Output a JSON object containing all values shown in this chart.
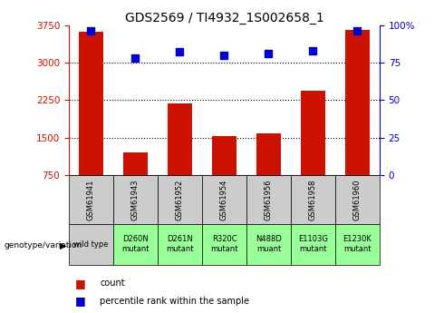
{
  "title": "GDS2569 / TI4932_1S002658_1",
  "samples": [
    "GSM61941",
    "GSM61943",
    "GSM61952",
    "GSM61954",
    "GSM61956",
    "GSM61958",
    "GSM61960"
  ],
  "genotype_labels": [
    "wild type",
    "D260N\nmutant",
    "D261N\nmutant",
    "R320C\nmutant",
    "N488D\nmuant",
    "E1103G\nmutant",
    "E1230K\nmutant"
  ],
  "genotype_colors": [
    "#cccccc",
    "#99ff99",
    "#99ff99",
    "#99ff99",
    "#99ff99",
    "#99ff99",
    "#99ff99"
  ],
  "counts": [
    3620,
    1200,
    2180,
    1530,
    1590,
    2440,
    3650
  ],
  "percentile_ranks": [
    96,
    78,
    82,
    80,
    81,
    83,
    96
  ],
  "ylim_left": [
    750,
    3750
  ],
  "ylim_right": [
    0,
    100
  ],
  "yticks_left": [
    750,
    1500,
    2250,
    3000,
    3750
  ],
  "yticks_right": [
    0,
    25,
    50,
    75,
    100
  ],
  "bar_color": "#cc1100",
  "dot_color": "#0000cc",
  "dot_size": 35,
  "bar_width": 0.55,
  "title_fontsize": 10,
  "tick_fontsize": 7.5,
  "background_color": "#ffffff",
  "legend_count_color": "#cc1100",
  "legend_pct_color": "#0000cc",
  "legend_label_count": "count",
  "legend_label_pct": "percentile rank within the sample",
  "genotype_arrow_label": "genotype/variation",
  "gridlines": [
    3000,
    2250,
    1500
  ],
  "sample_row_color": "#cccccc",
  "sample_text_fontsize": 6,
  "genotype_text_fontsize": 6
}
